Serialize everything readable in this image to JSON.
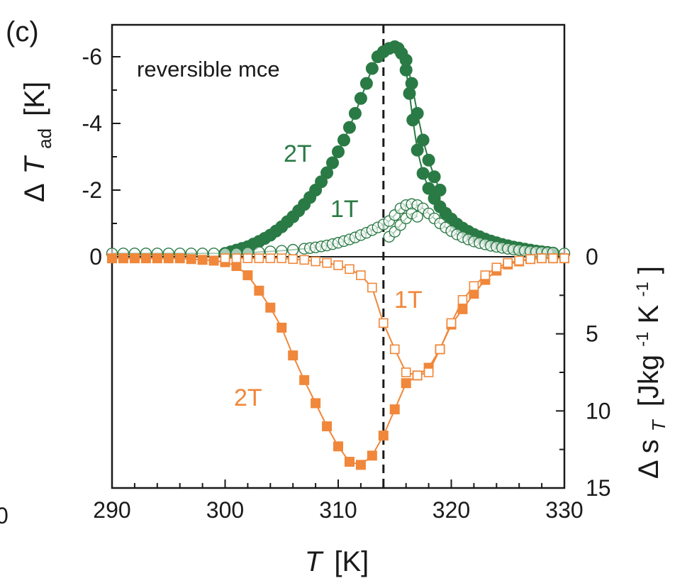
{
  "chart_data": {
    "type": "scatter",
    "panel_label": "(c)",
    "annotation": "reversible mce",
    "x": {
      "label_var": "T",
      "label_unit": "[K]",
      "range": [
        290,
        330
      ],
      "ticks": [
        290,
        300,
        310,
        320,
        330
      ],
      "tick_labels": [
        "290",
        "300",
        "310",
        "320",
        "330"
      ]
    },
    "y_left": {
      "label_prefix": "Δ",
      "label_var": "T",
      "label_sub": "ad",
      "label_unit": "[K]",
      "range": [
        -7,
        0
      ],
      "inverted": true,
      "ticks": [
        0,
        -2,
        -4,
        -6
      ],
      "tick_labels": [
        "0",
        "-2",
        "-4",
        "-6"
      ]
    },
    "y_right": {
      "label_prefix": "Δ",
      "label_var": "s",
      "label_sub": "T",
      "label_unit_open": "[Jkg",
      "label_sup1": "-1",
      "label_unit_mid": "K",
      "label_sup2": "-1",
      "label_unit_close": "]",
      "range": [
        0,
        15
      ],
      "ticks": [
        0,
        5,
        10,
        15
      ],
      "tick_labels": [
        "0",
        "5",
        "10",
        "15"
      ]
    },
    "vline_x": 314,
    "left_edge_tick": "0",
    "colors": {
      "green": "#2a7a45",
      "orange": "#f0873a",
      "axis": "#1a1a1a"
    },
    "series": [
      {
        "name": "2T",
        "axis": "left",
        "marker": "filled-circle",
        "color": "#2a7a45",
        "x": [
          300.0,
          300.5,
          301.0,
          301.5,
          302.0,
          302.5,
          303.0,
          303.5,
          304.0,
          304.5,
          305.0,
          305.5,
          306.0,
          306.5,
          307.0,
          307.5,
          308.0,
          308.5,
          309.0,
          309.5,
          310.0,
          310.5,
          311.0,
          311.5,
          312.0,
          312.5,
          313.0,
          313.5,
          314.0,
          314.5,
          315.0,
          315.3,
          315.6,
          316.0,
          316.3,
          316.6,
          317.0,
          317.5,
          318.0,
          318.5,
          319.0,
          319.5,
          320.0,
          320.5,
          321.0,
          321.5,
          322.0,
          322.5,
          323.0,
          323.5,
          324.0,
          324.5,
          325.0,
          325.5,
          326.0,
          326.5,
          327.0,
          327.5,
          328.0,
          328.5,
          329.0
        ],
        "values": [
          -0.1,
          -0.15,
          -0.2,
          -0.25,
          -0.3,
          -0.38,
          -0.46,
          -0.55,
          -0.65,
          -0.77,
          -0.9,
          -1.05,
          -1.2,
          -1.38,
          -1.57,
          -1.78,
          -2.0,
          -2.25,
          -2.52,
          -2.82,
          -3.15,
          -3.5,
          -3.88,
          -4.3,
          -4.75,
          -5.2,
          -5.65,
          -6.0,
          -6.15,
          -6.25,
          -6.3,
          -6.25,
          -6.1,
          -5.6,
          -4.9,
          -4.1,
          -3.2,
          -2.5,
          -2.05,
          -1.75,
          -1.5,
          -1.3,
          -1.13,
          -0.98,
          -0.86,
          -0.76,
          -0.67,
          -0.6,
          -0.53,
          -0.47,
          -0.42,
          -0.37,
          -0.33,
          -0.29,
          -0.26,
          -0.23,
          -0.2,
          -0.17,
          -0.15,
          -0.13,
          -0.11
        ]
      },
      {
        "name": "2T",
        "axis": "left",
        "marker": "filled-circle",
        "color": "#2a7a45",
        "x": [
          316.0,
          316.5,
          317.0,
          317.5,
          318.0,
          318.5,
          319.0
        ],
        "values": [
          -5.9,
          -5.2,
          -4.3,
          -3.5,
          -2.9,
          -2.4,
          -2.0
        ]
      },
      {
        "name": "1T",
        "axis": "left",
        "marker": "open-circle",
        "color": "#2a7a45",
        "x": [
          290,
          291,
          292,
          293,
          294,
          295,
          296,
          297,
          298,
          299,
          300,
          301,
          302,
          303,
          304,
          305,
          306,
          307,
          307.5,
          308,
          308.5,
          309,
          309.5,
          310,
          310.5,
          311,
          311.5,
          312,
          312.5,
          313,
          313.5,
          314,
          314.5,
          315,
          315.5,
          316,
          316.5,
          317,
          317.5,
          318,
          318.5,
          319,
          319.5,
          320,
          320.5,
          321,
          321.5,
          322,
          322.5,
          323,
          323.5,
          324,
          324.5,
          325,
          325.5,
          326,
          326.5,
          327,
          327.5,
          328,
          328.5,
          329,
          330
        ],
        "values": [
          -0.1,
          -0.1,
          -0.1,
          -0.1,
          -0.1,
          -0.1,
          -0.1,
          -0.1,
          -0.1,
          -0.1,
          -0.1,
          -0.1,
          -0.12,
          -0.14,
          -0.16,
          -0.18,
          -0.21,
          -0.24,
          -0.26,
          -0.28,
          -0.31,
          -0.34,
          -0.38,
          -0.42,
          -0.47,
          -0.52,
          -0.58,
          -0.65,
          -0.72,
          -0.8,
          -0.88,
          -0.97,
          -1.07,
          -1.25,
          -1.45,
          -1.55,
          -1.58,
          -1.55,
          -1.45,
          -1.3,
          -1.15,
          -1.0,
          -0.88,
          -0.77,
          -0.67,
          -0.59,
          -0.52,
          -0.46,
          -0.41,
          -0.37,
          -0.33,
          -0.3,
          -0.27,
          -0.24,
          -0.22,
          -0.2,
          -0.18,
          -0.16,
          -0.15,
          -0.14,
          -0.13,
          -0.12,
          -0.1
        ]
      },
      {
        "name": "1T",
        "axis": "left",
        "marker": "open-circle",
        "color": "#2a7a45",
        "x": [
          314.5,
          315.0,
          315.5,
          316.0,
          316.5,
          317.0
        ],
        "values": [
          -0.6,
          -0.75,
          -0.95,
          -1.15,
          -1.3,
          -1.2
        ]
      },
      {
        "name": "2T",
        "axis": "right",
        "marker": "filled-square",
        "color": "#f0873a",
        "x": [
          290,
          291,
          292,
          293,
          294,
          295,
          296,
          297,
          298,
          299,
          300,
          301,
          302,
          303,
          304,
          305,
          306,
          307,
          308,
          309,
          310,
          311,
          312,
          313,
          314,
          315,
          316,
          317,
          318,
          319,
          320,
          321,
          322,
          323,
          324,
          325,
          326,
          327,
          328,
          329,
          330
        ],
        "values": [
          0.1,
          0.1,
          0.1,
          0.1,
          0.1,
          0.1,
          0.1,
          0.15,
          0.2,
          0.25,
          0.35,
          0.6,
          1.2,
          2.2,
          3.3,
          4.6,
          6.4,
          8.0,
          9.5,
          11.0,
          12.3,
          13.3,
          13.5,
          12.9,
          11.6,
          9.9,
          8.2,
          7.7,
          7.2,
          6.0,
          4.4,
          3.4,
          2.4,
          1.5,
          0.9,
          0.5,
          0.3,
          0.15,
          0.1,
          0.1,
          0.1
        ]
      },
      {
        "name": "1T",
        "axis": "right",
        "marker": "open-square",
        "color": "#f0873a",
        "x": [
          300,
          301,
          302,
          303,
          304,
          305,
          306,
          307,
          308,
          309,
          310,
          311,
          312,
          313,
          314,
          315,
          316,
          317,
          318,
          319,
          320,
          321,
          322,
          323,
          324,
          325,
          326,
          327,
          328,
          329,
          330
        ],
        "values": [
          0.1,
          0.1,
          0.1,
          0.1,
          0.1,
          0.1,
          0.15,
          0.2,
          0.3,
          0.4,
          0.55,
          0.8,
          1.2,
          2.0,
          4.3,
          6.0,
          7.5,
          7.7,
          7.5,
          6.0,
          4.3,
          2.8,
          1.9,
          1.2,
          0.7,
          0.4,
          0.25,
          0.15,
          0.1,
          0.1,
          0.1
        ]
      }
    ],
    "series_labels": [
      {
        "text": "2T",
        "color": "#2a7a45"
      },
      {
        "text": "1T",
        "color": "#2a7a45"
      },
      {
        "text": "1T",
        "color": "#f0873a"
      },
      {
        "text": "2T",
        "color": "#f0873a"
      }
    ]
  }
}
